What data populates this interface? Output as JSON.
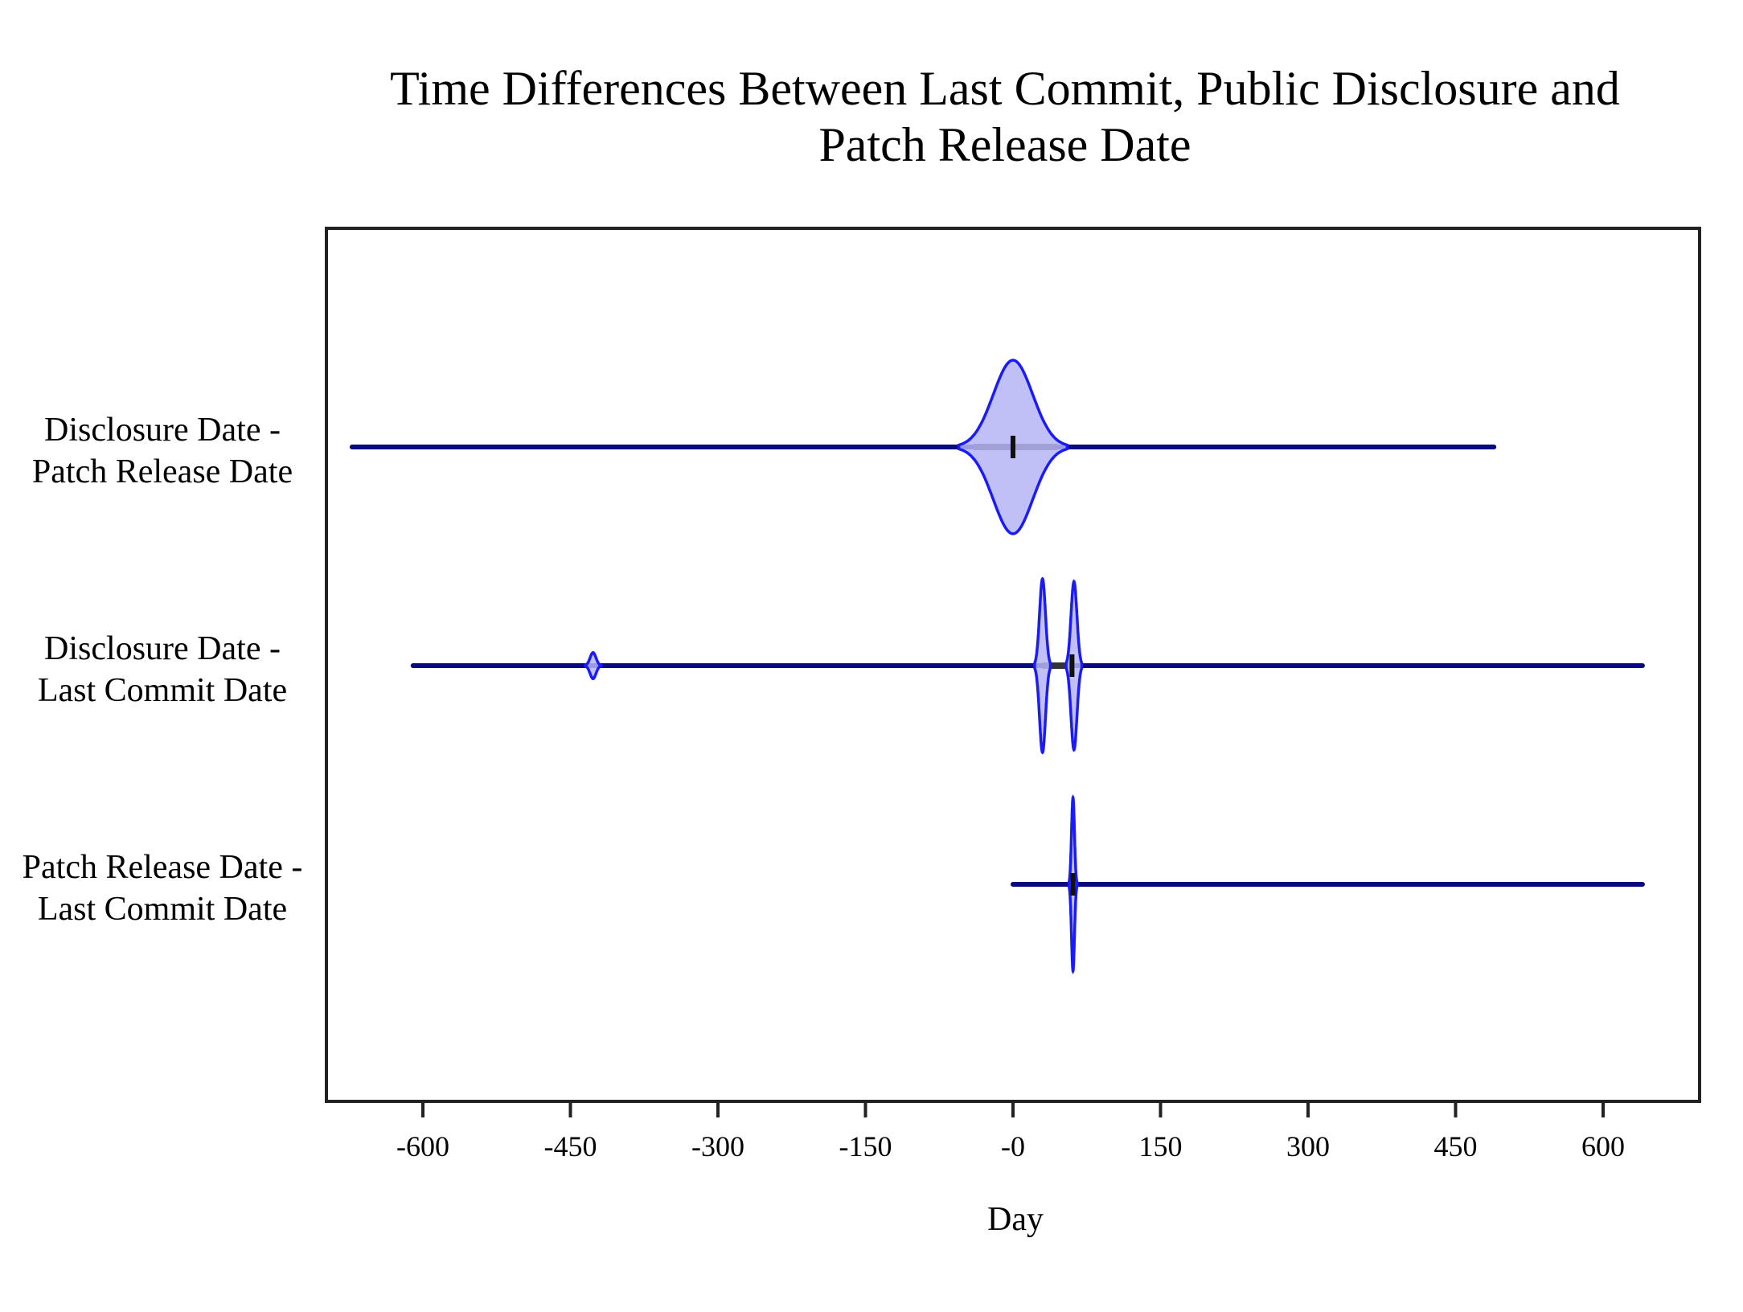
{
  "chart_data": {
    "type": "violin",
    "orientation": "horizontal",
    "title_lines": [
      "Time Differences Between Last Commit, Public Disclosure and",
      "Patch Release Date"
    ],
    "xlabel": "Day",
    "xlim": [
      -700,
      700
    ],
    "xticks": [
      -600,
      -450,
      -300,
      -150,
      0,
      150,
      300,
      450,
      600
    ],
    "xtick_labels": [
      "-600",
      "-450",
      "-300",
      "-150",
      "-0",
      "150",
      "300",
      "450",
      "600"
    ],
    "grid": false,
    "legend": "none",
    "colors": {
      "fill": "#b5b5f4",
      "outline": "#1a1aff",
      "whisker": "#0a0a80"
    },
    "series": [
      {
        "label_lines": [
          "Disclosure Date -",
          "Patch Release Date"
        ],
        "min": -672,
        "max": 489,
        "median": 0,
        "q1": -40,
        "q3": 45,
        "density_peaks": [
          {
            "center": 0,
            "sigma": 20,
            "spread": 55,
            "height": 1.0
          }
        ]
      },
      {
        "label_lines": [
          "Disclosure Date -",
          "Last Commit Date"
        ],
        "min": -610,
        "max": 640,
        "median": 60,
        "q1": 30,
        "q3": 62,
        "density_peaks": [
          {
            "center": -427,
            "sigma": 3,
            "spread": 8,
            "height": 0.15
          },
          {
            "center": 30,
            "sigma": 3,
            "spread": 8,
            "height": 1.0
          },
          {
            "center": 62,
            "sigma": 3,
            "spread": 8,
            "height": 0.97
          }
        ]
      },
      {
        "label_lines": [
          "Patch Release Date -",
          "Last Commit Date"
        ],
        "min": 0,
        "max": 640,
        "median": 61,
        "q1": 58,
        "q3": 63,
        "density_peaks": [
          {
            "center": 61,
            "sigma": 1.5,
            "spread": 4,
            "height": 1.0
          }
        ]
      }
    ]
  }
}
